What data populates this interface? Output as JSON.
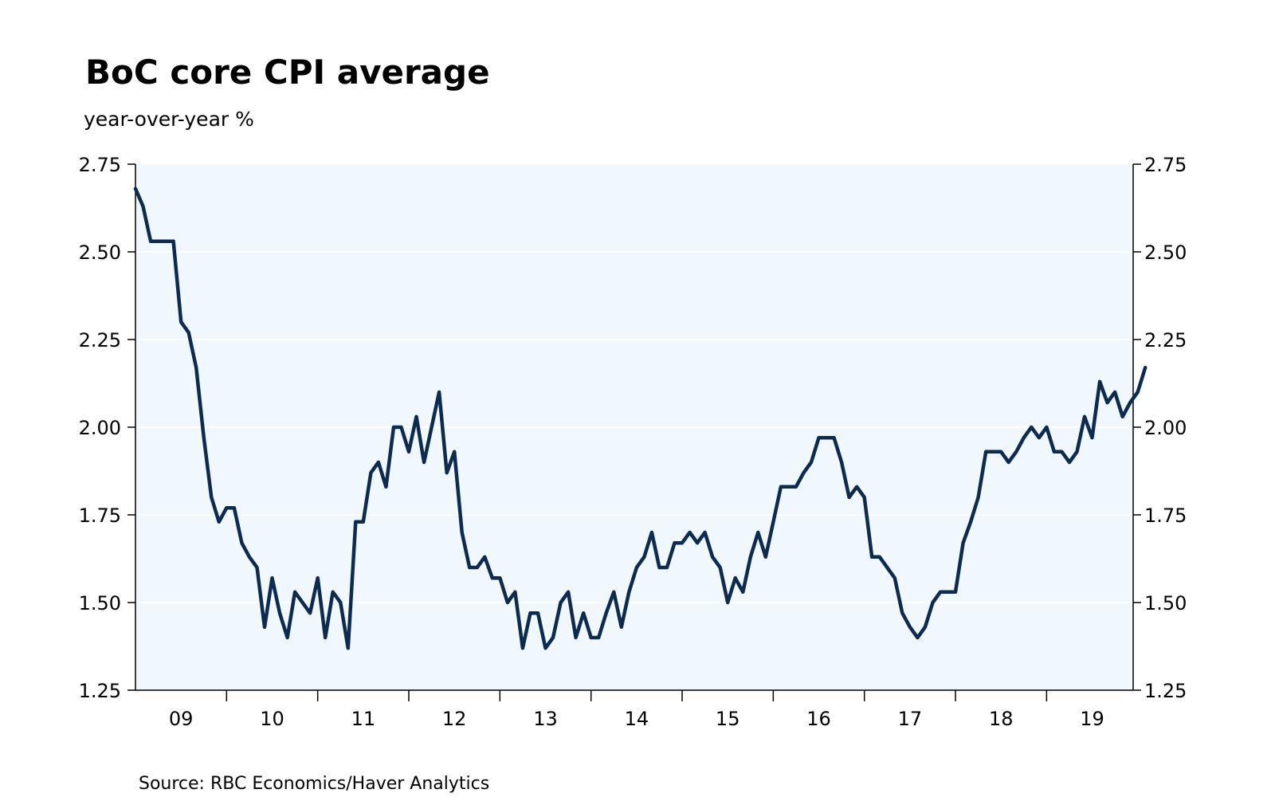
{
  "chart_data": {
    "type": "line",
    "title": "BoC core CPI average",
    "subtitle": "year-over-year %",
    "source": "Source:  RBC Economics/Haver Analytics",
    "xlabel": "",
    "ylabel": "",
    "ylim": [
      1.25,
      2.75
    ],
    "yticks": [
      "1.25",
      "1.50",
      "1.75",
      "2.00",
      "2.25",
      "2.50",
      "2.75"
    ],
    "xtick_labels": [
      "09",
      "10",
      "11",
      "12",
      "13",
      "14",
      "15",
      "16",
      "17",
      "18",
      "19"
    ],
    "xlim": [
      2009.0,
      2019.95
    ],
    "series": [
      {
        "name": "BoC core CPI average",
        "color": "#0d2a4f",
        "start_year": 2009.0,
        "step_months": 1,
        "values": [
          2.68,
          2.63,
          2.53,
          2.53,
          2.53,
          2.53,
          2.3,
          2.27,
          2.17,
          1.97,
          1.8,
          1.73,
          1.77,
          1.77,
          1.67,
          1.63,
          1.6,
          1.43,
          1.57,
          1.47,
          1.4,
          1.53,
          1.5,
          1.47,
          1.57,
          1.4,
          1.53,
          1.5,
          1.37,
          1.73,
          1.73,
          1.87,
          1.9,
          1.83,
          2.0,
          2.0,
          1.93,
          2.03,
          1.9,
          2.0,
          2.1,
          1.87,
          1.93,
          1.7,
          1.6,
          1.6,
          1.63,
          1.57,
          1.57,
          1.5,
          1.53,
          1.37,
          1.47,
          1.47,
          1.37,
          1.4,
          1.5,
          1.53,
          1.4,
          1.47,
          1.4,
          1.4,
          1.47,
          1.53,
          1.43,
          1.53,
          1.6,
          1.63,
          1.7,
          1.6,
          1.6,
          1.67,
          1.67,
          1.7,
          1.67,
          1.7,
          1.63,
          1.6,
          1.5,
          1.57,
          1.53,
          1.63,
          1.7,
          1.63,
          1.73,
          1.83,
          1.83,
          1.83,
          1.87,
          1.9,
          1.97,
          1.97,
          1.97,
          1.9,
          1.8,
          1.83,
          1.8,
          1.63,
          1.63,
          1.6,
          1.57,
          1.47,
          1.43,
          1.4,
          1.43,
          1.5,
          1.53,
          1.53,
          1.53,
          1.67,
          1.73,
          1.8,
          1.93,
          1.93,
          1.93,
          1.9,
          1.93,
          1.97,
          2.0,
          1.97,
          2.0,
          1.93,
          1.93,
          1.9,
          1.93,
          2.03,
          1.97,
          2.13,
          2.07,
          2.1,
          2.03,
          2.07,
          2.1,
          2.17
        ]
      }
    ]
  }
}
